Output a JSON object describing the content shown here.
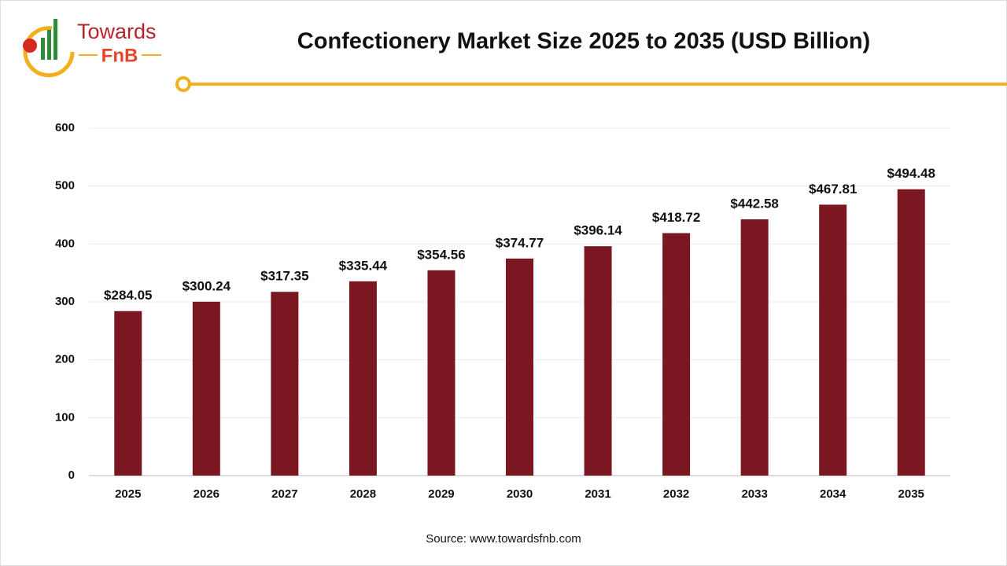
{
  "logo": {
    "line1": "Towards",
    "line2": "FnB"
  },
  "chart_data": {
    "type": "bar",
    "title": "Confectionery Market Size 2025 to 2035 (USD Billion)",
    "categories": [
      "2025",
      "2026",
      "2027",
      "2028",
      "2029",
      "2030",
      "2031",
      "2032",
      "2033",
      "2034",
      "2035"
    ],
    "values": [
      284.05,
      300.24,
      317.35,
      335.44,
      354.56,
      374.77,
      396.14,
      418.72,
      442.58,
      467.81,
      494.48
    ],
    "value_labels": [
      "$284.05",
      "$300.24",
      "$317.35",
      "$335.44",
      "$354.56",
      "$374.77",
      "$396.14",
      "$418.72",
      "$442.58",
      "$467.81",
      "$494.48"
    ],
    "color": "#7b1721",
    "ylim": [
      0,
      600
    ],
    "yticks": [
      0,
      100,
      200,
      300,
      400,
      500,
      600
    ],
    "grid": true,
    "source": "Source: www.towardsfnb.com"
  }
}
